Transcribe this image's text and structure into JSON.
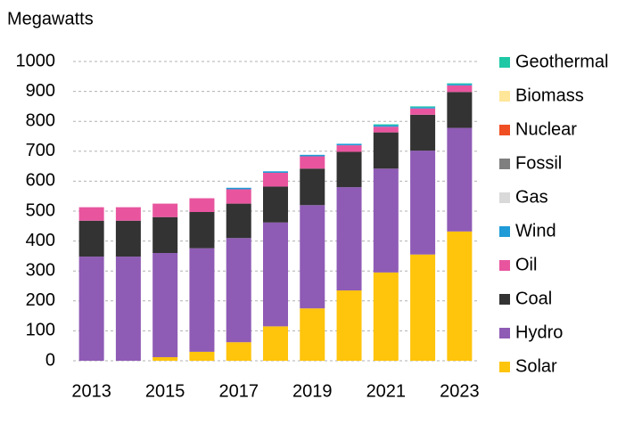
{
  "chart_data": {
    "type": "bar",
    "stacked": true,
    "title": "Megawatts",
    "categories": [
      "2013",
      null,
      "2015",
      null,
      "2017",
      null,
      "2019",
      null,
      "2021",
      null,
      "2023"
    ],
    "ylim": [
      0,
      1000
    ],
    "yticks": [
      0,
      100,
      200,
      300,
      400,
      500,
      600,
      700,
      800,
      900,
      1000
    ],
    "grid": true,
    "series": [
      {
        "name": "Solar",
        "color": "#ffc40c",
        "values": [
          0,
          0,
          12,
          30,
          62,
          115,
          175,
          235,
          295,
          355,
          432
        ]
      },
      {
        "name": "Hydro",
        "color": "#8e5bb5",
        "values": [
          348,
          348,
          348,
          346,
          348,
          347,
          345,
          345,
          347,
          347,
          346
        ]
      },
      {
        "name": "Coal",
        "color": "#333333",
        "values": [
          120,
          120,
          120,
          121,
          115,
          120,
          122,
          118,
          121,
          120,
          120
        ]
      },
      {
        "name": "Oil",
        "color": "#e8559e",
        "values": [
          45,
          45,
          45,
          46,
          48,
          46,
          41,
          22,
          19,
          21,
          22
        ]
      },
      {
        "name": "Wind",
        "color": "#1f9bd7",
        "values": [
          0,
          0,
          0,
          0,
          5,
          5,
          5,
          5,
          5,
          4,
          4
        ]
      },
      {
        "name": "Gas",
        "color": "#d9d9d9",
        "values": [
          0,
          0,
          0,
          0,
          0,
          0,
          0,
          0,
          0,
          0,
          0
        ]
      },
      {
        "name": "Fossil",
        "color": "#7f7f7f",
        "values": [
          0,
          0,
          0,
          0,
          0,
          0,
          0,
          0,
          0,
          0,
          0
        ]
      },
      {
        "name": "Nuclear",
        "color": "#f04e23",
        "values": [
          0,
          0,
          0,
          0,
          0,
          0,
          0,
          0,
          0,
          0,
          0
        ]
      },
      {
        "name": "Biomass",
        "color": "#ffe699",
        "values": [
          0,
          0,
          0,
          0,
          0,
          0,
          0,
          0,
          0,
          0,
          0
        ]
      },
      {
        "name": "Geothermal",
        "color": "#1fc8a5",
        "values": [
          0,
          0,
          0,
          0,
          0,
          0,
          0,
          0,
          3,
          3,
          3
        ]
      }
    ]
  }
}
